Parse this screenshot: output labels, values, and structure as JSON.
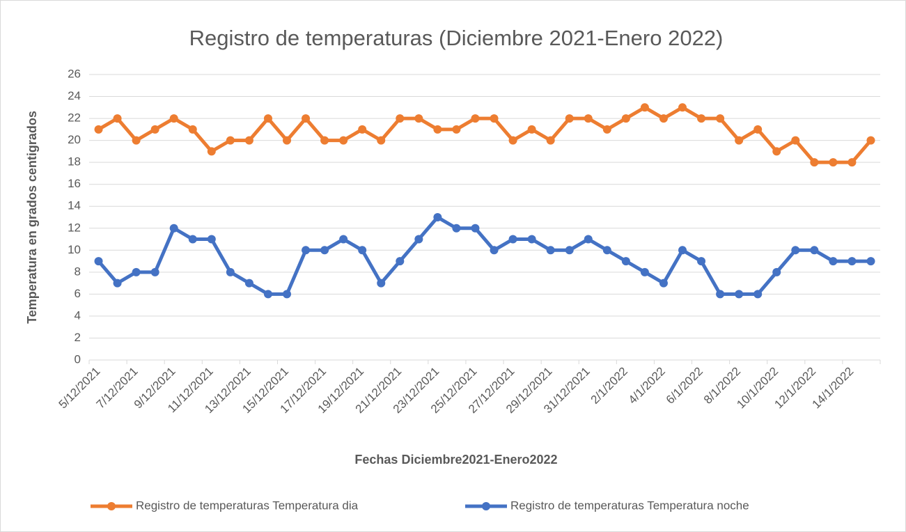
{
  "chart_data": {
    "type": "line",
    "title": "Registro de temperaturas (Diciembre 2021-Enero 2022)",
    "x_label": "Fechas Diciembre2021-Enero2022",
    "y_label": "Temperatura en grados centigrados",
    "categories": [
      "5/12/2021",
      null,
      "7/12/2021",
      null,
      "9/12/2021",
      null,
      "11/12/2021",
      null,
      "13/12/2021",
      null,
      "15/12/2021",
      null,
      "17/12/2021",
      null,
      "19/12/2021",
      null,
      "21/12/2021",
      null,
      "23/12/2021",
      null,
      "25/12/2021",
      null,
      "27/12/2021",
      null,
      "29/12/2021",
      null,
      "31/12/2021",
      null,
      "2/1/2022",
      null,
      "4/1/2022",
      null,
      "6/1/2022",
      null,
      "8/1/2022",
      null,
      "10/1/2022",
      null,
      "12/1/2022",
      null,
      "14/1/2022",
      null
    ],
    "series": [
      {
        "name": "Registro de temperaturas Temperatura dia",
        "color": "#ed7d31",
        "values": [
          21,
          22,
          20,
          21,
          22,
          21,
          19,
          20,
          20,
          22,
          20,
          22,
          20,
          20,
          21,
          20,
          22,
          22,
          21,
          21,
          22,
          22,
          20,
          21,
          20,
          22,
          22,
          21,
          22,
          23,
          22,
          23,
          22,
          22,
          20,
          21,
          19,
          20,
          18,
          18,
          18,
          20
        ]
      },
      {
        "name": "Registro de temperaturas Temperatura noche",
        "color": "#4472c4",
        "values": [
          9,
          7,
          8,
          8,
          12,
          11,
          11,
          8,
          7,
          6,
          6,
          10,
          10,
          11,
          10,
          7,
          9,
          11,
          13,
          12,
          12,
          10,
          11,
          11,
          10,
          10,
          11,
          10,
          9,
          8,
          7,
          10,
          9,
          6,
          6,
          6,
          8,
          10,
          10,
          9,
          9,
          9
        ]
      }
    ],
    "ylim": [
      0,
      26
    ],
    "yticks": [
      0,
      2,
      4,
      6,
      8,
      10,
      12,
      14,
      16,
      18,
      20,
      22,
      24,
      26
    ],
    "grid": true,
    "legend": "bottom"
  }
}
